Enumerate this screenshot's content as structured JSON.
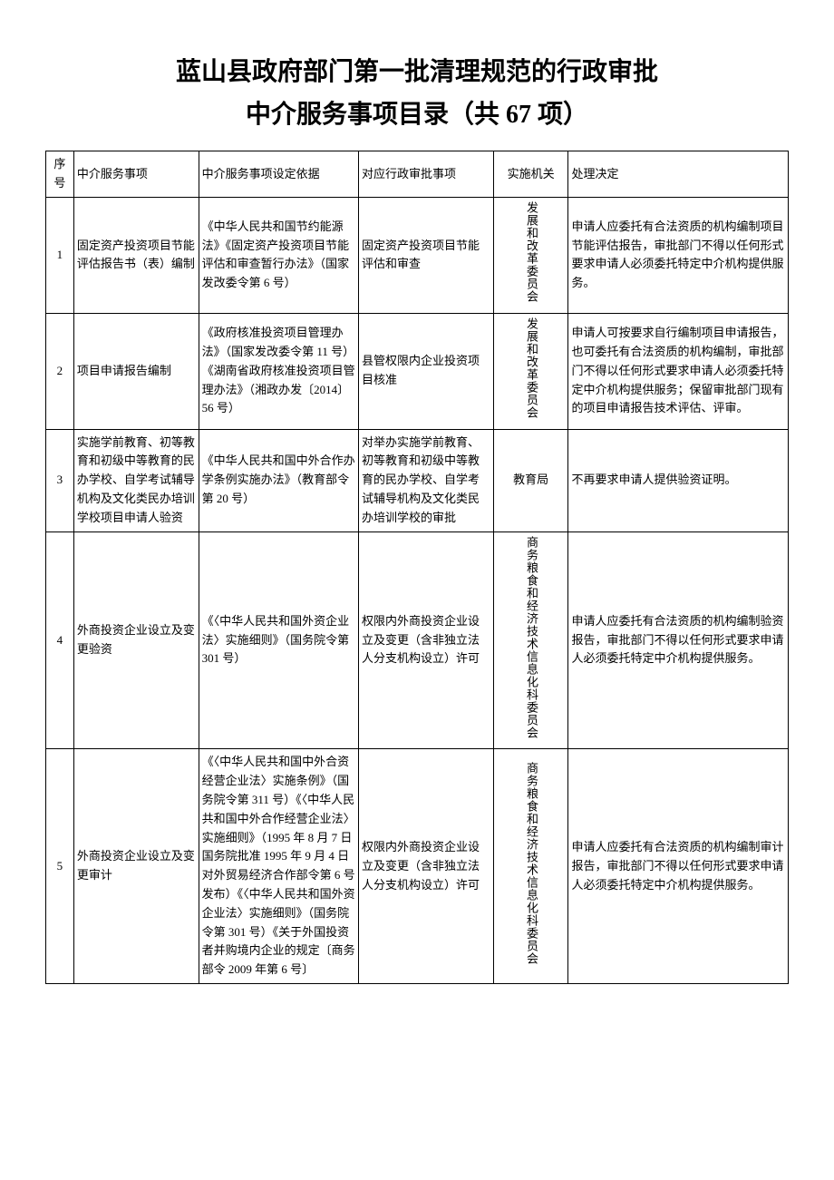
{
  "title_line1": "蓝山县政府部门第一批清理规范的行政审批",
  "title_line2": "中介服务事项目录（共 67 项）",
  "headers": {
    "num": "序号",
    "service": "中介服务事项",
    "basis": "中介服务事项设定依据",
    "approval": "对应行政审批事项",
    "agency": "实施机关",
    "decision": "处理决定"
  },
  "rows": [
    {
      "num": "1",
      "service": "固定资产投资项目节能评估报告书（表）编制",
      "basis": "《中华人民共和国节约能源法》《固定资产投资项目节能评估和审查暂行办法》（国家发改委令第 6 号）",
      "approval": "固定资产投资项目节能评估和审查",
      "agency": "发展和改革委员会",
      "agency_vertical": true,
      "decision": "申请人应委托有合法资质的机构编制项目节能评估报告，审批部门不得以任何形式要求申请人必须委托特定中介机构提供服务。"
    },
    {
      "num": "2",
      "service": "项目申请报告编制",
      "basis": "《政府核准投资项目管理办法》（国家发改委令第 11 号）《湖南省政府核准投资项目管理办法》（湘政办发〔2014〕56 号）",
      "approval": "县管权限内企业投资项目核准",
      "agency": "发展和改革委员会",
      "agency_vertical": true,
      "decision": "申请人可按要求自行编制项目申请报告，也可委托有合法资质的机构编制，审批部门不得以任何形式要求申请人必须委托特定中介机构提供服务；保留审批部门现有的项目申请报告技术评估、评审。"
    },
    {
      "num": "3",
      "service": "实施学前教育、初等教育和初级中等教育的民办学校、自学考试辅导机构及文化类民办培训学校项目申请人验资",
      "basis": "《中华人民共和国中外合作办学条例实施办法》（教育部令第 20 号）",
      "approval": "对举办实施学前教育、初等教育和初级中等教育的民办学校、自学考试辅导机构及文化类民办培训学校的审批",
      "agency": "教育局",
      "agency_vertical": false,
      "decision": "不再要求申请人提供验资证明。"
    },
    {
      "num": "4",
      "service": "外商投资企业设立及变更验资",
      "basis": "《〈中华人民共和国外资企业法〉实施细则》（国务院令第 301 号）",
      "approval": "权限内外商投资企业设立及变更（含非独立法人分支机构设立）许可",
      "agency": "商务粮食和经济技术信息化科委员会",
      "agency_vertical": true,
      "decision": "申请人应委托有合法资质的机构编制验资报告，审批部门不得以任何形式要求申请人必须委托特定中介机构提供服务。"
    },
    {
      "num": "5",
      "service": "外商投资企业设立及变更审计",
      "basis": "《〈中华人民共和国中外合资经营企业法〉实施条例》（国务院令第 311 号）《〈中华人民共和国中外合作经营企业法〉实施细则》（1995 年 8 月 7 日国务院批准 1995 年 9 月 4 日对外贸易经济合作部令第 6 号发布）《〈中华人民共和国外资企业法〉实施细则》（国务院令第 301 号）《关于外国投资者并购境内企业的规定〔商务部令 2009 年第 6 号〕",
      "approval": "权限内外商投资企业设立及变更（含非独立法人分支机构设立）许可",
      "agency": "商务粮食和经济技术信息化科委员会",
      "agency_vertical": true,
      "decision": "申请人应委托有合法资质的机构编制审计报告，审批部门不得以任何形式要求申请人必须委托特定中介机构提供服务。"
    }
  ],
  "colors": {
    "background": "#ffffff",
    "border": "#000000",
    "text": "#000000"
  },
  "typography": {
    "title_fontsize": 28,
    "body_fontsize": 13,
    "font_family": "SimSun"
  }
}
